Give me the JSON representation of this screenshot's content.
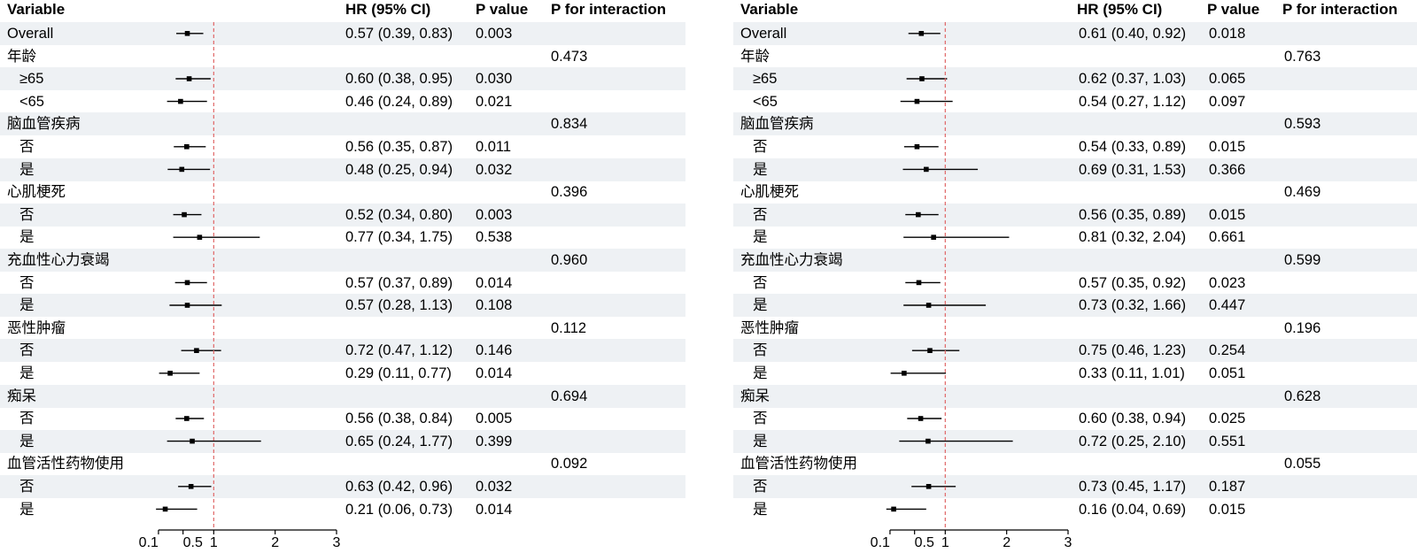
{
  "headers": {
    "variable": "Variable",
    "hr": "HR (95% CI)",
    "p": "P value",
    "p_int": "P for interaction"
  },
  "axis_ticks": [
    "0.1",
    "0.5",
    "1",
    "2",
    "3"
  ],
  "colors": {
    "ref_line": "#e06666",
    "shade": "#eef1f4",
    "ink": "#000000"
  },
  "chart_data": [
    {
      "type": "forest",
      "reference_line": 1,
      "xlim": [
        0,
        3
      ],
      "x_ticks": [
        0.1,
        0.5,
        1,
        2,
        3
      ],
      "rows": [
        {
          "label": "Overall",
          "sub": false,
          "hr": 0.57,
          "lo": 0.39,
          "hi": 0.83,
          "hr_text": "0.57 (0.39, 0.83)",
          "p": "0.003",
          "p_int": ""
        },
        {
          "label": "年龄",
          "sub": false,
          "hr": null,
          "hr_text": "",
          "p": "",
          "p_int": "0.473"
        },
        {
          "label": "≥65",
          "sub": true,
          "hr": 0.6,
          "lo": 0.38,
          "hi": 0.95,
          "hr_text": "0.60 (0.38, 0.95)",
          "p": "0.030",
          "p_int": ""
        },
        {
          "label": "<65",
          "sub": true,
          "hr": 0.46,
          "lo": 0.24,
          "hi": 0.89,
          "hr_text": "0.46 (0.24, 0.89)",
          "p": "0.021",
          "p_int": ""
        },
        {
          "label": "脑血管疾病",
          "sub": false,
          "hr": null,
          "hr_text": "",
          "p": "",
          "p_int": "0.834"
        },
        {
          "label": "否",
          "sub": true,
          "hr": 0.56,
          "lo": 0.35,
          "hi": 0.87,
          "hr_text": "0.56 (0.35, 0.87)",
          "p": "0.011",
          "p_int": ""
        },
        {
          "label": "是",
          "sub": true,
          "hr": 0.48,
          "lo": 0.25,
          "hi": 0.94,
          "hr_text": "0.48 (0.25, 0.94)",
          "p": "0.032",
          "p_int": ""
        },
        {
          "label": "心肌梗死",
          "sub": false,
          "hr": null,
          "hr_text": "",
          "p": "",
          "p_int": "0.396"
        },
        {
          "label": "否",
          "sub": true,
          "hr": 0.52,
          "lo": 0.34,
          "hi": 0.8,
          "hr_text": "0.52 (0.34, 0.80)",
          "p": "0.003",
          "p_int": ""
        },
        {
          "label": "是",
          "sub": true,
          "hr": 0.77,
          "lo": 0.34,
          "hi": 1.75,
          "hr_text": "0.77 (0.34, 1.75)",
          "p": "0.538",
          "p_int": ""
        },
        {
          "label": "充血性心力衰竭",
          "sub": false,
          "hr": null,
          "hr_text": "",
          "p": "",
          "p_int": "0.960"
        },
        {
          "label": "否",
          "sub": true,
          "hr": 0.57,
          "lo": 0.37,
          "hi": 0.89,
          "hr_text": "0.57 (0.37, 0.89)",
          "p": "0.014",
          "p_int": ""
        },
        {
          "label": "是",
          "sub": true,
          "hr": 0.57,
          "lo": 0.28,
          "hi": 1.13,
          "hr_text": "0.57 (0.28, 1.13)",
          "p": "0.108",
          "p_int": ""
        },
        {
          "label": "恶性肿瘤",
          "sub": false,
          "hr": null,
          "hr_text": "",
          "p": "",
          "p_int": "0.112"
        },
        {
          "label": "否",
          "sub": true,
          "hr": 0.72,
          "lo": 0.47,
          "hi": 1.12,
          "hr_text": "0.72 (0.47, 1.12)",
          "p": "0.146",
          "p_int": ""
        },
        {
          "label": "是",
          "sub": true,
          "hr": 0.29,
          "lo": 0.11,
          "hi": 0.77,
          "hr_text": "0.29 (0.11, 0.77)",
          "p": "0.014",
          "p_int": ""
        },
        {
          "label": "痴呆",
          "sub": false,
          "hr": null,
          "hr_text": "",
          "p": "",
          "p_int": "0.694"
        },
        {
          "label": "否",
          "sub": true,
          "hr": 0.56,
          "lo": 0.38,
          "hi": 0.84,
          "hr_text": "0.56 (0.38, 0.84)",
          "p": "0.005",
          "p_int": ""
        },
        {
          "label": "是",
          "sub": true,
          "hr": 0.65,
          "lo": 0.24,
          "hi": 1.77,
          "hr_text": "0.65 (0.24, 1.77)",
          "p": "0.399",
          "p_int": ""
        },
        {
          "label": "血管活性药物使用",
          "sub": false,
          "hr": null,
          "hr_text": "",
          "p": "",
          "p_int": "0.092"
        },
        {
          "label": "否",
          "sub": true,
          "hr": 0.63,
          "lo": 0.42,
          "hi": 0.96,
          "hr_text": "0.63 (0.42, 0.96)",
          "p": "0.032",
          "p_int": ""
        },
        {
          "label": "是",
          "sub": true,
          "hr": 0.21,
          "lo": 0.06,
          "hi": 0.73,
          "hr_text": "0.21 (0.06, 0.73)",
          "p": "0.014",
          "p_int": ""
        }
      ]
    },
    {
      "type": "forest",
      "reference_line": 1,
      "xlim": [
        0,
        3
      ],
      "x_ticks": [
        0.1,
        0.5,
        1,
        2,
        3
      ],
      "rows": [
        {
          "label": "Overall",
          "sub": false,
          "hr": 0.61,
          "lo": 0.4,
          "hi": 0.92,
          "hr_text": "0.61 (0.40, 0.92)",
          "p": "0.018",
          "p_int": ""
        },
        {
          "label": "年龄",
          "sub": false,
          "hr": null,
          "hr_text": "",
          "p": "",
          "p_int": "0.763"
        },
        {
          "label": "≥65",
          "sub": true,
          "hr": 0.62,
          "lo": 0.37,
          "hi": 1.03,
          "hr_text": "0.62 (0.37, 1.03)",
          "p": "0.065",
          "p_int": ""
        },
        {
          "label": "<65",
          "sub": true,
          "hr": 0.54,
          "lo": 0.27,
          "hi": 1.12,
          "hr_text": "0.54 (0.27, 1.12)",
          "p": "0.097",
          "p_int": ""
        },
        {
          "label": "脑血管疾病",
          "sub": false,
          "hr": null,
          "hr_text": "",
          "p": "",
          "p_int": "0.593"
        },
        {
          "label": "否",
          "sub": true,
          "hr": 0.54,
          "lo": 0.33,
          "hi": 0.89,
          "hr_text": "0.54 (0.33, 0.89)",
          "p": "0.015",
          "p_int": ""
        },
        {
          "label": "是",
          "sub": true,
          "hr": 0.69,
          "lo": 0.31,
          "hi": 1.53,
          "hr_text": "0.69 (0.31, 1.53)",
          "p": "0.366",
          "p_int": ""
        },
        {
          "label": "心肌梗死",
          "sub": false,
          "hr": null,
          "hr_text": "",
          "p": "",
          "p_int": "0.469"
        },
        {
          "label": "否",
          "sub": true,
          "hr": 0.56,
          "lo": 0.35,
          "hi": 0.89,
          "hr_text": "0.56 (0.35, 0.89)",
          "p": "0.015",
          "p_int": ""
        },
        {
          "label": "是",
          "sub": true,
          "hr": 0.81,
          "lo": 0.32,
          "hi": 2.04,
          "hr_text": "0.81 (0.32, 2.04)",
          "p": "0.661",
          "p_int": ""
        },
        {
          "label": "充血性心力衰竭",
          "sub": false,
          "hr": null,
          "hr_text": "",
          "p": "",
          "p_int": "0.599"
        },
        {
          "label": "否",
          "sub": true,
          "hr": 0.57,
          "lo": 0.35,
          "hi": 0.92,
          "hr_text": "0.57 (0.35, 0.92)",
          "p": "0.023",
          "p_int": ""
        },
        {
          "label": "是",
          "sub": true,
          "hr": 0.73,
          "lo": 0.32,
          "hi": 1.66,
          "hr_text": "0.73 (0.32, 1.66)",
          "p": "0.447",
          "p_int": ""
        },
        {
          "label": "恶性肿瘤",
          "sub": false,
          "hr": null,
          "hr_text": "",
          "p": "",
          "p_int": "0.196"
        },
        {
          "label": "否",
          "sub": true,
          "hr": 0.75,
          "lo": 0.46,
          "hi": 1.23,
          "hr_text": "0.75 (0.46, 1.23)",
          "p": "0.254",
          "p_int": ""
        },
        {
          "label": "是",
          "sub": true,
          "hr": 0.33,
          "lo": 0.11,
          "hi": 1.01,
          "hr_text": "0.33 (0.11, 1.01)",
          "p": "0.051",
          "p_int": ""
        },
        {
          "label": "痴呆",
          "sub": false,
          "hr": null,
          "hr_text": "",
          "p": "",
          "p_int": "0.628"
        },
        {
          "label": "否",
          "sub": true,
          "hr": 0.6,
          "lo": 0.38,
          "hi": 0.94,
          "hr_text": "0.60 (0.38, 0.94)",
          "p": "0.025",
          "p_int": ""
        },
        {
          "label": "是",
          "sub": true,
          "hr": 0.72,
          "lo": 0.25,
          "hi": 2.1,
          "hr_text": "0.72 (0.25, 2.10)",
          "p": "0.551",
          "p_int": ""
        },
        {
          "label": "血管活性药物使用",
          "sub": false,
          "hr": null,
          "hr_text": "",
          "p": "",
          "p_int": "0.055"
        },
        {
          "label": "否",
          "sub": true,
          "hr": 0.73,
          "lo": 0.45,
          "hi": 1.17,
          "hr_text": "0.73 (0.45, 1.17)",
          "p": "0.187",
          "p_int": ""
        },
        {
          "label": "是",
          "sub": true,
          "hr": 0.16,
          "lo": 0.04,
          "hi": 0.69,
          "hr_text": "0.16 (0.04, 0.69)",
          "p": "0.015",
          "p_int": ""
        }
      ]
    }
  ]
}
